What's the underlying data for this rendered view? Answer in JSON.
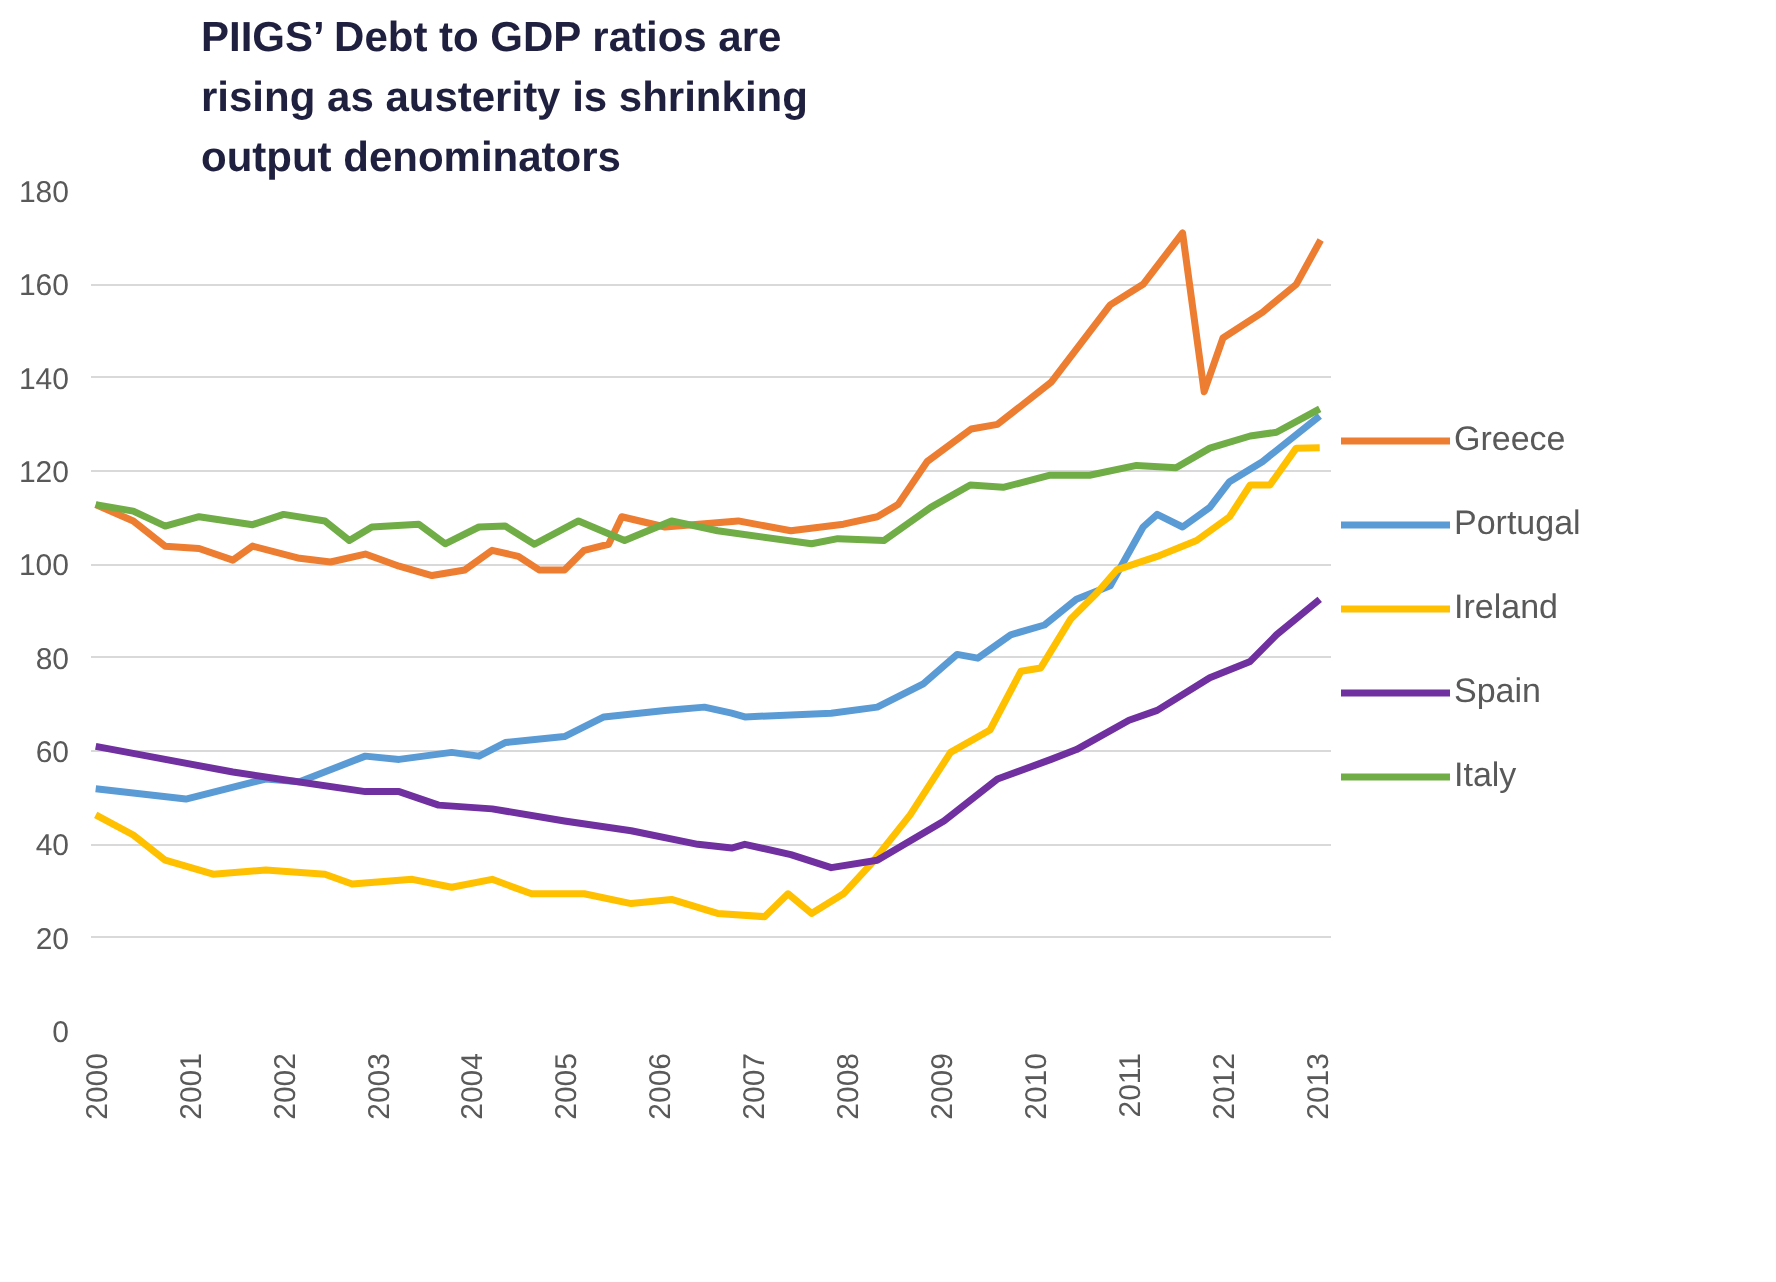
{
  "chart_data": {
    "type": "line",
    "title": "PIIGS’ Debt to GDP ratios are\nrising as austerity is shrinking\noutput denominators",
    "xlim": [
      1999.95,
      2013.15
    ],
    "xticks": [
      2000,
      2001,
      2002,
      2003,
      2004,
      2005,
      2006,
      2007,
      2008,
      2009,
      2010,
      2011,
      2012,
      2013
    ],
    "ylim": [
      0,
      180
    ],
    "yticks": [
      0,
      20,
      40,
      60,
      80,
      100,
      120,
      140,
      160,
      180
    ],
    "grid": "y",
    "legend": "right",
    "line_style": "solid",
    "marker": "none",
    "series": [
      {
        "name": "Greece",
        "color": "#ed7d31",
        "x": [
          2000,
          2000.4,
          2000.74,
          2001.1,
          2001.46,
          2001.67,
          2002.17,
          2002.5,
          2002.87,
          2003.23,
          2003.58,
          2003.93,
          2004.22,
          2004.5,
          2004.72,
          2004.99,
          2005.2,
          2005.46,
          2005.6,
          2006.06,
          2006.84,
          2007.4,
          2007.96,
          2008.32,
          2008.54,
          2008.85,
          2009.32,
          2009.6,
          2010.17,
          2010.8,
          2011.15,
          2011.57,
          2011.8,
          2012.0,
          2012.42,
          2012.78,
          2013.04
        ],
        "values": [
          112.8,
          109.3,
          103.9,
          103.4,
          100.9,
          103.9,
          101.3,
          100.5,
          102.2,
          99.6,
          97.6,
          98.8,
          103,
          101.7,
          98.8,
          98.8,
          103,
          104.3,
          110.2,
          108,
          109.3,
          107.2,
          108.6,
          110.2,
          112.8,
          122,
          129,
          130,
          139,
          155.6,
          160,
          171,
          137,
          148.5,
          154,
          160,
          169.5
        ]
      },
      {
        "name": "Portugal",
        "color": "#5b9bd5",
        "x": [
          2000,
          2000.96,
          2001.81,
          2002.17,
          2002.87,
          2003.23,
          2003.79,
          2004.08,
          2004.36,
          2004.99,
          2005.41,
          2006.06,
          2006.48,
          2006.77,
          2006.91,
          2007.83,
          2008.32,
          2008.81,
          2009.17,
          2009.39,
          2009.74,
          2010.1,
          2010.44,
          2010.8,
          2011.15,
          2011.3,
          2011.57,
          2011.86,
          2012.07,
          2012.42,
          2013.03
        ],
        "values": [
          51.9,
          49.7,
          54,
          53.4,
          58.9,
          58.2,
          59.7,
          58.9,
          61.8,
          63.1,
          67.3,
          68.7,
          69.4,
          68.1,
          67.3,
          68.1,
          69.4,
          74.4,
          80.7,
          79.9,
          84.9,
          87,
          92.5,
          95.4,
          108,
          110.7,
          108,
          112.2,
          117.7,
          122,
          131.8
        ]
      },
      {
        "name": "Ireland",
        "color": "#ffc000",
        "x": [
          2000,
          2000.4,
          2000.74,
          2001.25,
          2001.81,
          2002.44,
          2002.73,
          2003.37,
          2003.79,
          2004.22,
          2004.64,
          2005.2,
          2005.7,
          2006.13,
          2006.62,
          2007.12,
          2007.37,
          2007.62,
          2007.96,
          2008.25,
          2008.67,
          2009.1,
          2009.52,
          2009.85,
          2010.06,
          2010.38,
          2010.66,
          2010.87,
          2011.3,
          2011.72,
          2012.07,
          2012.29,
          2012.5,
          2012.78,
          2013.03
        ],
        "values": [
          46.3,
          42,
          36.6,
          33.6,
          34.5,
          33.6,
          31.5,
          32.5,
          30.8,
          32.5,
          29.4,
          29.4,
          27.3,
          28.2,
          25.2,
          24.5,
          29.4,
          25.2,
          29.4,
          35.7,
          46.3,
          59.7,
          64.5,
          77.1,
          77.8,
          88.3,
          93.9,
          98.8,
          101.7,
          105.1,
          110.2,
          117,
          117,
          124.9,
          125
        ]
      },
      {
        "name": "Spain",
        "color": "#7030a0",
        "x": [
          2000,
          2000.74,
          2001.46,
          2001.95,
          2002.87,
          2003.23,
          2003.65,
          2004.22,
          2004.99,
          2005.7,
          2006.41,
          2006.77,
          2006.91,
          2007.4,
          2007.83,
          2008.32,
          2009.03,
          2009.6,
          2010.17,
          2010.44,
          2011.0,
          2011.3,
          2011.86,
          2012.29,
          2012.57,
          2013.03
        ],
        "values": [
          61,
          58.2,
          55.5,
          54,
          51.3,
          51.3,
          48.4,
          47.6,
          45,
          42.9,
          40,
          39.2,
          40,
          37.8,
          35,
          36.6,
          45,
          54,
          58.2,
          60.3,
          66.6,
          68.7,
          75.7,
          79.2,
          84.9,
          92.5
        ]
      },
      {
        "name": "Italy",
        "color": "#70ad47",
        "x": [
          2000,
          2000.4,
          2000.74,
          2001.1,
          2001.67,
          2002.0,
          2002.44,
          2002.7,
          2002.94,
          2003.44,
          2003.72,
          2004.08,
          2004.36,
          2004.67,
          2005.14,
          2005.63,
          2006.13,
          2006.62,
          2007.62,
          2007.9,
          2008.39,
          2008.89,
          2009.31,
          2009.66,
          2010.16,
          2010.58,
          2011.08,
          2011.5,
          2011.86,
          2012.29,
          2012.57,
          2013.03
        ],
        "values": [
          112.8,
          111.4,
          108.2,
          110.2,
          108.5,
          110.7,
          109.3,
          105.1,
          108,
          108.6,
          104.4,
          108,
          108.2,
          104.3,
          109.3,
          105.1,
          109.3,
          107.2,
          104.4,
          105.5,
          105.1,
          112.2,
          117,
          116.5,
          119.1,
          119.1,
          121.2,
          120.7,
          124.9,
          127.5,
          128.3,
          133.3
        ]
      }
    ]
  }
}
